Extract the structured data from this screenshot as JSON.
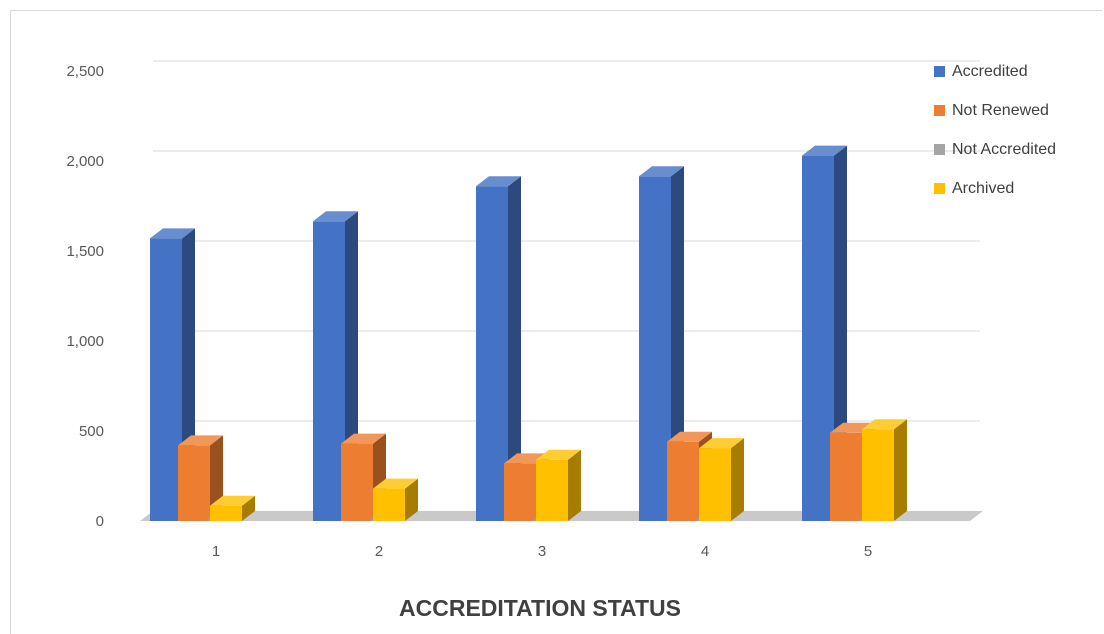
{
  "chart_data": {
    "type": "bar",
    "style": "3d-clustered-column",
    "title": "",
    "xlabel": "ACCREDITATION STATUS",
    "ylabel": "",
    "categories": [
      "1",
      "2",
      "3",
      "4",
      "5"
    ],
    "ylim": [
      0,
      2500
    ],
    "yticks": [
      0,
      500,
      1000,
      1500,
      2000,
      2500
    ],
    "ytick_labels": [
      "0",
      "500",
      "1,000",
      "1,500",
      "2,000",
      "2,500"
    ],
    "grid": true,
    "legend_position": "top-right",
    "series": [
      {
        "name": "Accredited",
        "color": "#4472c4",
        "values": [
          1570,
          1665,
          1860,
          1915,
          2030
        ]
      },
      {
        "name": "Not Renewed",
        "color": "#ed7d31",
        "values": [
          420,
          430,
          320,
          440,
          490
        ]
      },
      {
        "name": "Not Accredited",
        "color": "#a5a5a5",
        "values": [
          0,
          0,
          0,
          0,
          0
        ]
      },
      {
        "name": "Archived",
        "color": "#ffc000",
        "values": [
          85,
          180,
          340,
          405,
          510
        ]
      }
    ]
  }
}
